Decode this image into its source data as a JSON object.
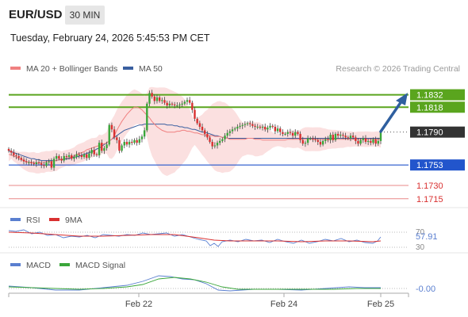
{
  "header": {
    "symbol": "EUR/USD",
    "timeframe": "30 MIN",
    "timestamp": "Tuesday, February 24, 2026 5:45:53 PM CET"
  },
  "legend": {
    "ma20": "MA 20 + Bollinger Bands",
    "ma50": "MA 50",
    "rsi": "RSI",
    "ma9": "9MA",
    "macd": "MACD",
    "macd_signal": "MACD Signal"
  },
  "credit": "Research © 2026 Trading Central",
  "colors": {
    "up_candle": "#3aa63a",
    "down_candle": "#d93030",
    "ma20": "#f08080",
    "ma50": "#3a5fa0",
    "bollinger_fill": "#fbe0e0",
    "resistance": "#5aa51e",
    "support": "#2255cc",
    "minor": "#e88888",
    "current_price": "#333333",
    "arrow": "#2f5f9f"
  },
  "chart_data": {
    "type": "candlestick",
    "symbol": "EUR/USD",
    "interval": "30 MIN",
    "x_ticks": [
      "Feb 22",
      "Feb 24",
      "Feb 25"
    ],
    "y_range": [
      1.1705,
      1.1845
    ],
    "levels": [
      {
        "value": 1.1832,
        "label": "1.1832",
        "kind": "resistance"
      },
      {
        "value": 1.1818,
        "label": "1.1818",
        "kind": "resistance"
      },
      {
        "value": 1.179,
        "label": "1.1790",
        "kind": "current"
      },
      {
        "value": 1.1753,
        "label": "1.1753",
        "kind": "support"
      },
      {
        "value": 1.173,
        "label": "1.1730",
        "kind": "minor"
      },
      {
        "value": 1.1715,
        "label": "1.1715",
        "kind": "minor"
      }
    ],
    "close": [
      1.1769,
      1.1767,
      1.1764,
      1.1763,
      1.1761,
      1.1759,
      1.1757,
      1.1756,
      1.1756,
      1.1755,
      1.1754,
      1.1756,
      1.1755,
      1.1753,
      1.1752,
      1.1756,
      1.1757,
      1.175,
      1.176,
      1.1763,
      1.176,
      1.1758,
      1.1763,
      1.1762,
      1.1764,
      1.176,
      1.1762,
      1.1765,
      1.1764,
      1.1762,
      1.1765,
      1.1761,
      1.1766,
      1.177,
      1.1765,
      1.1764,
      1.1778,
      1.1769,
      1.1772,
      1.1776,
      1.1798,
      1.1793,
      1.1784,
      1.1781,
      1.1769,
      1.1775,
      1.1779,
      1.1776,
      1.1779,
      1.1778,
      1.1781,
      1.1778,
      1.1782,
      1.1785,
      1.1792,
      1.1822,
      1.1834,
      1.183,
      1.1825,
      1.1829,
      1.1825,
      1.1826,
      1.1823,
      1.182,
      1.1822,
      1.1821,
      1.182,
      1.182,
      1.1821,
      1.1822,
      1.1824,
      1.1826,
      1.1823,
      1.1815,
      1.1805,
      1.18,
      1.1796,
      1.1792,
      1.1788,
      1.1784,
      1.1779,
      1.1774,
      1.1775,
      1.1778,
      1.178,
      1.1782,
      1.1786,
      1.1789,
      1.1791,
      1.1793,
      1.1794,
      1.1796,
      1.1797,
      1.1798,
      1.1799,
      1.18,
      1.1799,
      1.1797,
      1.1796,
      1.1796,
      1.1795,
      1.1796,
      1.1793,
      1.1795,
      1.1797,
      1.1796,
      1.1791,
      1.1794,
      1.179,
      1.1788,
      1.1788,
      1.179,
      1.1789,
      1.1786,
      1.179,
      1.1788,
      1.1781,
      1.1777,
      1.1778,
      1.1783,
      1.1783,
      1.1782,
      1.1781,
      1.1779,
      1.1776,
      1.178,
      1.1782,
      1.1781,
      1.1787,
      1.1781,
      1.1788,
      1.1786,
      1.1787,
      1.1786,
      1.1784,
      1.1783,
      1.1786,
      1.1784,
      1.178,
      1.1777,
      1.1781,
      1.1783,
      1.1779,
      1.178,
      1.1778,
      1.1782,
      1.1777,
      1.178,
      1.179
    ],
    "price_ma20": [
      1.1765,
      1.1764,
      1.1763,
      1.1762,
      1.176,
      1.1759,
      1.1758,
      1.1757,
      1.1756,
      1.1756,
      1.1756,
      1.1755,
      1.1755,
      1.1756,
      1.1756,
      1.1757,
      1.1757,
      1.1757,
      1.1758,
      1.1758,
      1.1759,
      1.1759,
      1.176,
      1.1761,
      1.1761,
      1.1762,
      1.1763,
      1.1765,
      1.1766,
      1.1767,
      1.1768,
      1.177,
      1.1771,
      1.1772,
      1.1773,
      1.1774,
      1.1775,
      1.1776,
      1.1777,
      1.1778,
      1.178,
      1.1782,
      1.1786,
      1.1792,
      1.1797,
      1.1802,
      1.1806,
      1.181,
      1.1813,
      1.1816,
      1.1818,
      1.1818,
      1.1817,
      1.1815,
      1.1812,
      1.1809,
      1.1806,
      1.1802,
      1.1799,
      1.1796,
      1.1794,
      1.1792,
      1.1791,
      1.179,
      1.179,
      1.179,
      1.179,
      1.1791,
      1.1791,
      1.1792,
      1.1792,
      1.1791,
      1.1791,
      1.179,
      1.1789,
      1.1789,
      1.1788,
      1.1787,
      1.1787,
      1.1786,
      1.1786,
      1.1786,
      1.1785,
      1.1785,
      1.1785,
      1.1784,
      1.1784,
      1.1783,
      1.1782,
      1.1782,
      1.1782,
      1.1782,
      1.1782,
      1.1782,
      1.1782,
      1.1783,
      1.1783,
      1.1783,
      1.1782,
      1.1782,
      1.1782,
      1.1781,
      1.1781,
      1.1781,
      1.1781,
      1.1781,
      1.1781,
      1.1781,
      1.1781,
      1.1781,
      1.1781,
      1.1782,
      1.1782,
      1.1782,
      1.1782,
      1.1782,
      1.1782,
      1.1782,
      1.1782,
      1.1782,
      1.1782,
      1.1782,
      1.1782,
      1.1782,
      1.1782,
      1.1782,
      1.1782,
      1.1782,
      1.1782,
      1.1782,
      1.1782,
      1.1782,
      1.1782,
      1.1782,
      1.1782,
      1.1782,
      1.1782,
      1.1782,
      1.1782,
      1.1782,
      1.1782,
      1.1782,
      1.1782,
      1.1782,
      1.1782,
      1.1782,
      1.1782,
      1.1782,
      1.1782
    ],
    "price_ma50": [
      1.1769,
      1.1768,
      1.1767,
      1.1766,
      1.1765,
      1.1764,
      1.1763,
      1.1762,
      1.1761,
      1.176,
      1.176,
      1.1759,
      1.1759,
      1.1758,
      1.1758,
      1.1758,
      1.1758,
      1.1758,
      1.1758,
      1.1758,
      1.1759,
      1.1759,
      1.1759,
      1.176,
      1.176,
      1.1761,
      1.1762,
      1.1762,
      1.1763,
      1.1764,
      1.1765,
      1.1766,
      1.1767,
      1.1768,
      1.1769,
      1.1771,
      1.1772,
      1.1774,
      1.1776,
      1.1778,
      1.178,
      1.1782,
      1.1784,
      1.1786,
      1.1788,
      1.179,
      1.1792,
      1.1793,
      1.1794,
      1.1795,
      1.1796,
      1.1797,
      1.1798,
      1.1798,
      1.1799,
      1.1799,
      1.1799,
      1.1799,
      1.1799,
      1.1799,
      1.1799,
      1.1799,
      1.1799,
      1.1798,
      1.1798,
      1.1798,
      1.1797,
      1.1797,
      1.1796,
      1.1796,
      1.1795,
      1.1795,
      1.1794,
      1.1793,
      1.1793,
      1.1792,
      1.1791,
      1.179,
      1.179,
      1.1789,
      1.1788,
      1.1787,
      1.1786,
      1.1786,
      1.1785,
      1.1784,
      1.1784,
      1.1783,
      1.1783,
      1.1783,
      1.1783,
      1.1783,
      1.1783,
      1.1783,
      1.1783,
      1.1783,
      1.1783,
      1.1783,
      1.1783,
      1.1783,
      1.1783,
      1.1783,
      1.1783,
      1.1783,
      1.1783,
      1.1783,
      1.1783,
      1.1783,
      1.1783,
      1.1783,
      1.1783,
      1.1783,
      1.1783,
      1.1783,
      1.1783,
      1.1783,
      1.1783,
      1.1783,
      1.1783,
      1.1783,
      1.1783,
      1.1783,
      1.1783,
      1.1783,
      1.1783,
      1.1783,
      1.1783,
      1.1783,
      1.1783,
      1.1783,
      1.1783,
      1.1783,
      1.1783,
      1.1783,
      1.1783,
      1.1783,
      1.1783,
      1.1783,
      1.1783,
      1.1783,
      1.1783,
      1.1783,
      1.1783,
      1.1783,
      1.1783,
      1.1783,
      1.1783,
      1.1783,
      1.1783
    ],
    "rsi_axis": [
      "70",
      "30"
    ],
    "rsi_last": "57.91",
    "macd_last": "-0.00"
  }
}
